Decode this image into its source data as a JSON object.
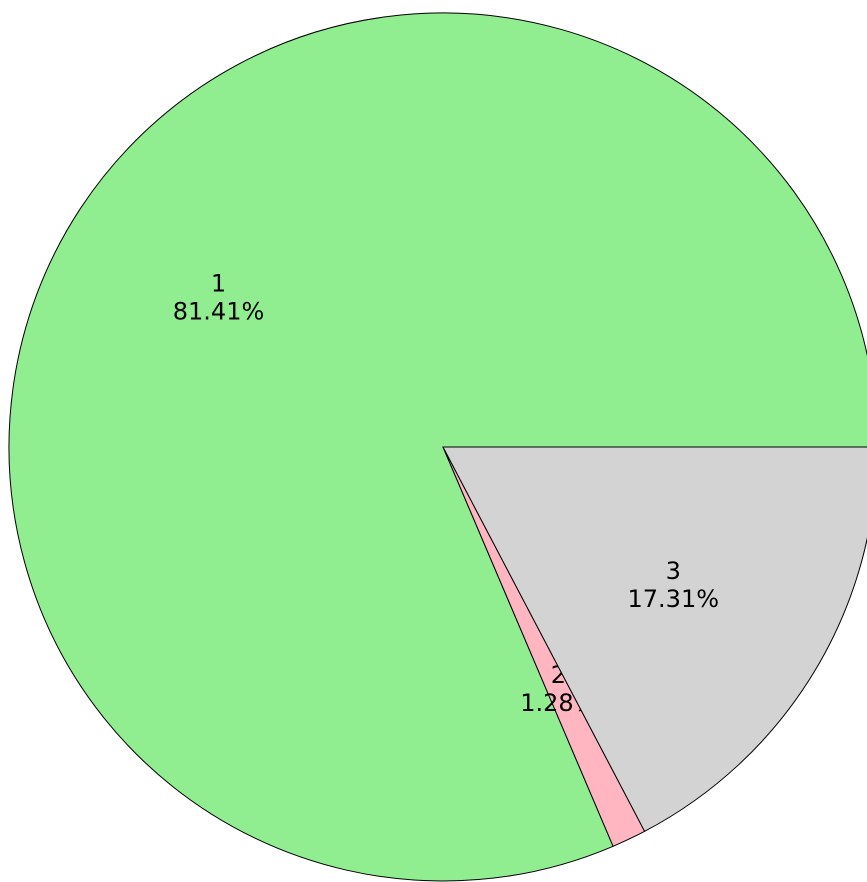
{
  "chart_data": {
    "type": "pie",
    "categories": [
      "1",
      "2",
      "3"
    ],
    "values": [
      81.41,
      1.28,
      17.31
    ],
    "value_labels": [
      "81.41%",
      "1.28%",
      "17.31%"
    ],
    "colors": [
      "#90ee90",
      "#ffb6c1",
      "#d3d3d3"
    ]
  }
}
